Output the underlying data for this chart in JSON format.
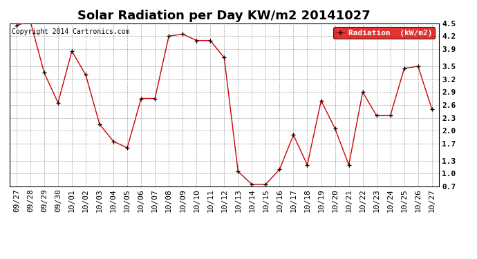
{
  "title": "Solar Radiation per Day KW/m2 20141027",
  "copyright_text": "Copyright 2014 Cartronics.com",
  "legend_label": "Radiation  (kW/m2)",
  "dates": [
    "09/27",
    "09/28",
    "09/29",
    "09/30",
    "10/01",
    "10/02",
    "10/03",
    "10/04",
    "10/05",
    "10/06",
    "10/07",
    "10/08",
    "10/09",
    "10/10",
    "10/11",
    "10/12",
    "10/13",
    "10/14",
    "10/15",
    "10/16",
    "10/17",
    "10/18",
    "10/19",
    "10/20",
    "10/21",
    "10/22",
    "10/23",
    "10/24",
    "10/25",
    "10/26",
    "10/27"
  ],
  "values": [
    4.45,
    4.55,
    3.35,
    2.65,
    3.85,
    3.3,
    2.15,
    1.75,
    1.6,
    2.75,
    2.75,
    4.2,
    4.25,
    4.1,
    4.1,
    3.7,
    1.05,
    0.75,
    0.75,
    1.1,
    1.9,
    1.2,
    2.7,
    2.05,
    1.2,
    2.9,
    2.35,
    2.35,
    3.45,
    3.5,
    2.5
  ],
  "line_color": "#cc0000",
  "marker_color": "#000000",
  "background_color": "#ffffff",
  "grid_color": "#999999",
  "ylim": [
    0.7,
    4.5
  ],
  "yticks": [
    0.7,
    1.0,
    1.3,
    1.7,
    2.0,
    2.3,
    2.6,
    2.9,
    3.2,
    3.5,
    3.9,
    4.2,
    4.5
  ],
  "legend_bg": "#dd0000",
  "legend_text_color": "#ffffff",
  "title_fontsize": 13,
  "tick_fontsize": 8,
  "copyright_fontsize": 7,
  "label_fontfamily": "monospace"
}
